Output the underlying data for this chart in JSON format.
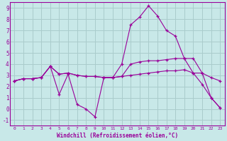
{
  "bg_color": "#c8e8e8",
  "grid_color": "#aacccc",
  "line_color": "#990099",
  "xlabel": "Windchill (Refroidissement éolien,°C)",
  "xlim": [
    -0.5,
    23.5
  ],
  "ylim": [
    -1.5,
    9.5
  ],
  "xticks": [
    0,
    1,
    2,
    3,
    4,
    5,
    6,
    7,
    8,
    9,
    10,
    11,
    12,
    13,
    14,
    15,
    16,
    17,
    18,
    19,
    20,
    21,
    22,
    23
  ],
  "yticks": [
    -1,
    0,
    1,
    2,
    3,
    4,
    5,
    6,
    7,
    8,
    9
  ],
  "series1": [
    2.5,
    2.7,
    2.7,
    2.8,
    3.8,
    1.3,
    3.1,
    0.4,
    0.0,
    -0.7,
    2.8,
    2.8,
    4.0,
    7.5,
    8.2,
    9.2,
    8.3,
    7.0,
    6.5,
    4.5,
    3.2,
    2.2,
    1.0,
    0.1
  ],
  "series2": [
    2.5,
    2.7,
    2.7,
    2.8,
    3.8,
    3.1,
    3.2,
    3.0,
    2.9,
    2.9,
    2.8,
    2.8,
    2.9,
    4.0,
    4.2,
    4.3,
    4.3,
    4.4,
    4.5,
    4.5,
    4.5,
    3.2,
    1.0,
    0.1
  ],
  "series3": [
    2.5,
    2.7,
    2.7,
    2.8,
    3.8,
    3.1,
    3.2,
    3.0,
    2.9,
    2.9,
    2.8,
    2.8,
    2.9,
    3.0,
    3.1,
    3.2,
    3.3,
    3.4,
    3.4,
    3.5,
    3.2,
    3.2,
    2.8,
    2.5
  ]
}
